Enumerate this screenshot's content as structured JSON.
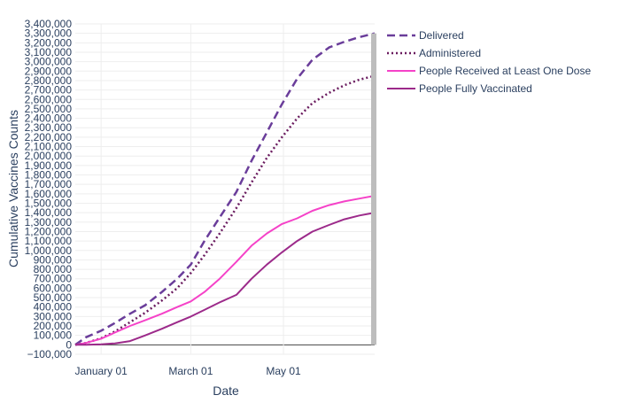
{
  "chart_data": {
    "type": "line",
    "xlabel": "Date",
    "ylabel": "Cumulative Vaccines Counts",
    "x_ticks": [
      {
        "label": "January 01",
        "date": "2021-01-01"
      },
      {
        "label": "March 01",
        "date": "2021-03-01"
      },
      {
        "label": "May 01",
        "date": "2021-05-01"
      }
    ],
    "x_range": [
      "2020-12-15",
      "2021-06-30"
    ],
    "ylim": [
      -100000,
      3400000
    ],
    "y_tick_step": 100000,
    "grid": true,
    "legend_position": "top-right",
    "series": [
      {
        "name": "Delivered",
        "color": "#6a3d9a",
        "dash": "dash",
        "points": [
          [
            "2020-12-15",
            0
          ],
          [
            "2020-12-22",
            80000
          ],
          [
            "2021-01-01",
            150000
          ],
          [
            "2021-01-10",
            230000
          ],
          [
            "2021-01-20",
            330000
          ],
          [
            "2021-01-30",
            420000
          ],
          [
            "2021-02-10",
            560000
          ],
          [
            "2021-02-20",
            700000
          ],
          [
            "2021-03-01",
            850000
          ],
          [
            "2021-03-10",
            1100000
          ],
          [
            "2021-03-20",
            1350000
          ],
          [
            "2021-03-31",
            1620000
          ],
          [
            "2021-04-10",
            1950000
          ],
          [
            "2021-04-20",
            2250000
          ],
          [
            "2021-04-30",
            2550000
          ],
          [
            "2021-05-10",
            2820000
          ],
          [
            "2021-05-20",
            3020000
          ],
          [
            "2021-05-31",
            3150000
          ],
          [
            "2021-06-10",
            3210000
          ],
          [
            "2021-06-20",
            3260000
          ],
          [
            "2021-06-30",
            3300000
          ]
        ]
      },
      {
        "name": "Administered",
        "color": "#6a1b5f",
        "dash": "dot",
        "points": [
          [
            "2020-12-15",
            0
          ],
          [
            "2020-12-22",
            20000
          ],
          [
            "2021-01-01",
            70000
          ],
          [
            "2021-01-10",
            140000
          ],
          [
            "2021-01-20",
            240000
          ],
          [
            "2021-01-30",
            340000
          ],
          [
            "2021-02-10",
            470000
          ],
          [
            "2021-02-20",
            600000
          ],
          [
            "2021-03-01",
            760000
          ],
          [
            "2021-03-10",
            950000
          ],
          [
            "2021-03-20",
            1180000
          ],
          [
            "2021-03-31",
            1450000
          ],
          [
            "2021-04-10",
            1720000
          ],
          [
            "2021-04-20",
            1980000
          ],
          [
            "2021-04-30",
            2200000
          ],
          [
            "2021-05-10",
            2400000
          ],
          [
            "2021-05-20",
            2560000
          ],
          [
            "2021-05-31",
            2670000
          ],
          [
            "2021-06-10",
            2750000
          ],
          [
            "2021-06-20",
            2810000
          ],
          [
            "2021-06-30",
            2850000
          ]
        ]
      },
      {
        "name": "People Received at Least One Dose",
        "color": "#f542c8",
        "dash": "solid",
        "points": [
          [
            "2020-12-15",
            0
          ],
          [
            "2020-12-22",
            20000
          ],
          [
            "2021-01-01",
            65000
          ],
          [
            "2021-01-10",
            130000
          ],
          [
            "2021-01-20",
            200000
          ],
          [
            "2021-01-30",
            260000
          ],
          [
            "2021-02-10",
            330000
          ],
          [
            "2021-02-20",
            400000
          ],
          [
            "2021-03-01",
            460000
          ],
          [
            "2021-03-10",
            560000
          ],
          [
            "2021-03-20",
            700000
          ],
          [
            "2021-03-31",
            880000
          ],
          [
            "2021-04-10",
            1050000
          ],
          [
            "2021-04-20",
            1180000
          ],
          [
            "2021-04-30",
            1280000
          ],
          [
            "2021-05-10",
            1340000
          ],
          [
            "2021-05-20",
            1420000
          ],
          [
            "2021-05-31",
            1480000
          ],
          [
            "2021-06-10",
            1520000
          ],
          [
            "2021-06-20",
            1550000
          ],
          [
            "2021-06-30",
            1580000
          ]
        ]
      },
      {
        "name": "People Fully Vaccinated",
        "color": "#9c2a8a",
        "dash": "solid",
        "points": [
          [
            "2020-12-15",
            0
          ],
          [
            "2020-12-22",
            0
          ],
          [
            "2021-01-01",
            5000
          ],
          [
            "2021-01-10",
            15000
          ],
          [
            "2021-01-20",
            40000
          ],
          [
            "2021-01-30",
            100000
          ],
          [
            "2021-02-10",
            170000
          ],
          [
            "2021-02-20",
            240000
          ],
          [
            "2021-03-01",
            300000
          ],
          [
            "2021-03-10",
            370000
          ],
          [
            "2021-03-20",
            450000
          ],
          [
            "2021-03-31",
            530000
          ],
          [
            "2021-04-10",
            700000
          ],
          [
            "2021-04-20",
            850000
          ],
          [
            "2021-04-30",
            980000
          ],
          [
            "2021-05-10",
            1100000
          ],
          [
            "2021-05-20",
            1200000
          ],
          [
            "2021-05-31",
            1270000
          ],
          [
            "2021-06-10",
            1330000
          ],
          [
            "2021-06-20",
            1370000
          ],
          [
            "2021-06-30",
            1400000
          ]
        ]
      }
    ]
  }
}
